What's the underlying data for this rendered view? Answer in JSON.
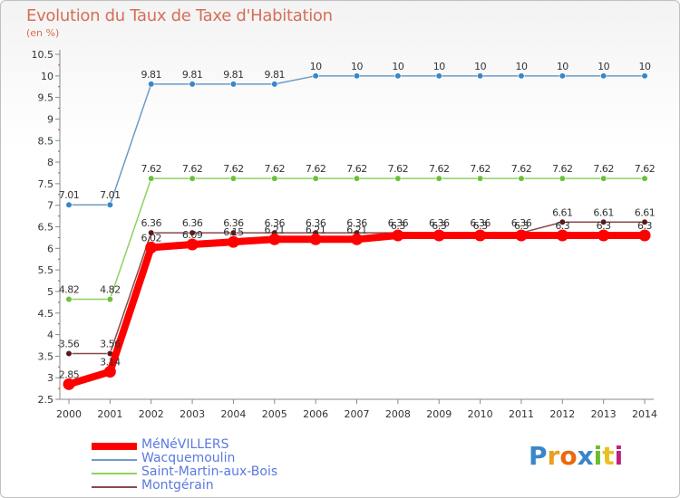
{
  "header": {
    "title": "Evolution du Taux de Taxe d'Habitation",
    "subtitle": "(en %)"
  },
  "logo": {
    "text": "Proxiti",
    "letters": [
      "P",
      "r",
      "o",
      "x",
      "i",
      "t",
      "i"
    ],
    "colors": [
      "#3a86c8",
      "#e8a020",
      "#e86a10",
      "#3a86c8",
      "#6abf2a",
      "#e8c020",
      "#c02080"
    ]
  },
  "chart_data": {
    "type": "line",
    "title": "Evolution du Taux de Taxe d'Habitation",
    "ylabel": "(en %)",
    "xlabel": "",
    "ylim": [
      2.5,
      10.5
    ],
    "yticks": [
      "2.5",
      "3",
      "3.5",
      "4",
      "4.5",
      "5",
      "5.5",
      "6",
      "6.5",
      "7",
      "7.5",
      "8",
      "8.5",
      "9",
      "9.5",
      "10",
      "10.5"
    ],
    "x": [
      "2000",
      "2001",
      "2002",
      "2003",
      "2004",
      "2005",
      "2006",
      "2007",
      "2008",
      "2009",
      "2010",
      "2011",
      "2012",
      "2013",
      "2014"
    ],
    "series": [
      {
        "name": "Wacquemoulin",
        "color": "#6e9bc5",
        "marker": "#3a87c6",
        "values": [
          7.01,
          7.01,
          9.81,
          9.81,
          9.81,
          9.81,
          10,
          10,
          10,
          10,
          10,
          10,
          10,
          10,
          10
        ],
        "labels": [
          "7.01",
          "7.01",
          "9.81",
          "9.81",
          "9.81",
          "9.81",
          "10",
          "10",
          "10",
          "10",
          "10",
          "10",
          "10",
          "10",
          "10"
        ]
      },
      {
        "name": "Saint-Martin-aux-Bois",
        "color": "#8fd163",
        "marker": "#6cc13a",
        "values": [
          4.82,
          4.82,
          7.62,
          7.62,
          7.62,
          7.62,
          7.62,
          7.62,
          7.62,
          7.62,
          7.62,
          7.62,
          7.62,
          7.62,
          7.62
        ],
        "labels": [
          "4.82",
          "4.82",
          "7.62",
          "7.62",
          "7.62",
          "7.62",
          "7.62",
          "7.62",
          "7.62",
          "7.62",
          "7.62",
          "7.62",
          "7.62",
          "7.62",
          "7.62"
        ]
      },
      {
        "name": "Montgérain",
        "color": "#8a4a4a",
        "marker": "#5a1a1a",
        "values": [
          3.56,
          3.56,
          6.36,
          6.36,
          6.36,
          6.36,
          6.36,
          6.36,
          6.36,
          6.36,
          6.36,
          6.36,
          6.61,
          6.61,
          6.61
        ],
        "labels": [
          "3.56",
          "3.56",
          "6.36",
          "6.36",
          "6.36",
          "6.36",
          "6.36",
          "6.36",
          "6.36",
          "6.36",
          "6.36",
          "6.36",
          "6.61",
          "6.61",
          "6.61"
        ]
      },
      {
        "name": "MéNéVILLERS",
        "color": "#ff0000",
        "marker": "#ff0000",
        "values": [
          2.85,
          3.14,
          6.02,
          6.09,
          6.15,
          6.21,
          6.21,
          6.21,
          6.3,
          6.3,
          6.3,
          6.3,
          6.3,
          6.3,
          6.3
        ],
        "labels": [
          "2.85",
          "3.14",
          "6.02",
          "6.09",
          "6.15",
          "6.21",
          "6.21",
          "6.21",
          "6.3",
          "6.3",
          "6.3",
          "6.3",
          "6.3",
          "6.3",
          "6.3"
        ]
      }
    ],
    "legend": [
      {
        "name": "MéNéVILLERS",
        "color": "#ff0000"
      },
      {
        "name": "Wacquemoulin",
        "color": "#6e9bc5"
      },
      {
        "name": "Saint-Martin-aux-Bois",
        "color": "#8fd163"
      },
      {
        "name": "Montgérain",
        "color": "#8a4a4a"
      }
    ],
    "grid": false
  }
}
